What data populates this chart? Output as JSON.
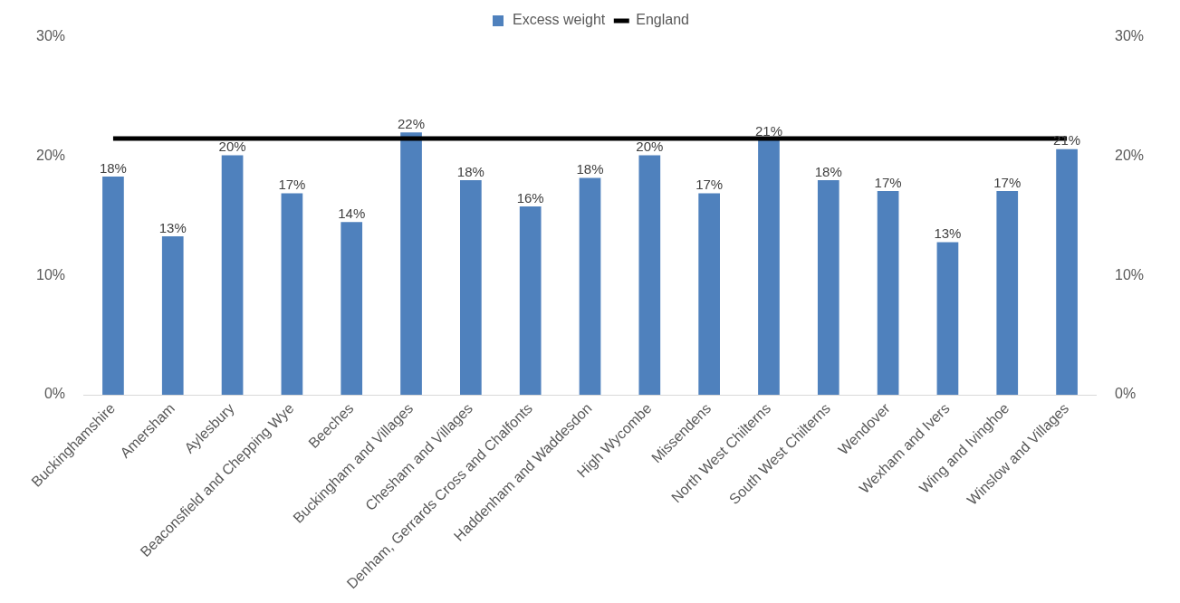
{
  "chart_data": {
    "type": "bar",
    "categories": [
      "Buckinghamshire",
      "Amersham",
      "Aylesbury",
      "Beaconsfield and Chepping Wye",
      "Beeches",
      "Buckingham and Villages",
      "Chesham and Villages",
      "Denham, Gerrards Cross and Chalfonts",
      "Haddenham and Waddesdon",
      "High Wycombe",
      "Missendens",
      "North West Chilterns",
      "South West Chilterns",
      "Wendover",
      "Wexham and Ivers",
      "Wing and Ivinghoe",
      "Winslow and Villages"
    ],
    "series": [
      {
        "name": "Excess weight",
        "color": "#4f81bd",
        "values": [
          18.3,
          13.3,
          20.1,
          16.9,
          14.5,
          22.0,
          18.0,
          15.8,
          18.2,
          20.1,
          16.9,
          21.4,
          18.0,
          17.1,
          12.8,
          17.1,
          20.6
        ],
        "value_labels": [
          "18%",
          "13%",
          "20%",
          "17%",
          "14%",
          "22%",
          "18%",
          "16%",
          "18%",
          "20%",
          "17%",
          "21%",
          "18%",
          "17%",
          "13%",
          "17%",
          "21%"
        ]
      },
      {
        "name": "England",
        "type": "line",
        "color": "#000000",
        "marker": "none",
        "values": [
          21.5,
          21.5,
          21.5,
          21.5,
          21.5,
          21.5,
          21.5,
          21.5,
          21.5,
          21.5,
          21.5,
          21.5,
          21.5,
          21.5,
          21.5,
          21.5,
          21.5
        ]
      }
    ],
    "ylim": [
      0,
      30
    ],
    "yticks": [
      {
        "value": 0,
        "label": "0%"
      },
      {
        "value": 10,
        "label": "10%"
      },
      {
        "value": 20,
        "label": "20%"
      },
      {
        "value": 30,
        "label": "30%"
      }
    ],
    "y2lim": [
      0,
      30
    ],
    "y2ticks": [
      {
        "value": 0,
        "label": "0%"
      },
      {
        "value": 10,
        "label": "10%"
      },
      {
        "value": 20,
        "label": "20%"
      },
      {
        "value": 30,
        "label": "30%"
      }
    ],
    "legend": "top",
    "grid": false
  }
}
